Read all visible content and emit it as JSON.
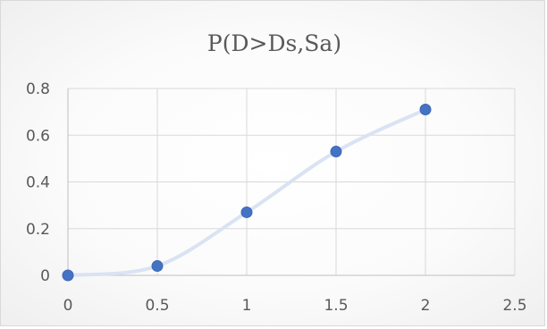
{
  "chart_data": {
    "type": "scatter",
    "title": "P(D>Ds,Sa)",
    "x": [
      0,
      0.5,
      1,
      1.5,
      2
    ],
    "y": [
      0,
      0.04,
      0.27,
      0.53,
      0.71
    ],
    "xlim": [
      0,
      2.5
    ],
    "ylim": [
      0,
      0.8
    ],
    "x_ticks": [
      "0",
      "0.5",
      "1",
      "1.5",
      "2",
      "2.5"
    ],
    "y_ticks": [
      "0",
      "0.2",
      "0.4",
      "0.6",
      "0.8"
    ],
    "xlabel": "",
    "ylabel": "",
    "grid": true,
    "smooth_line": true,
    "colors": {
      "marker": "#4472c4",
      "line": "#dae3f3",
      "grid": "#d9d9d9",
      "text": "#595959"
    }
  }
}
